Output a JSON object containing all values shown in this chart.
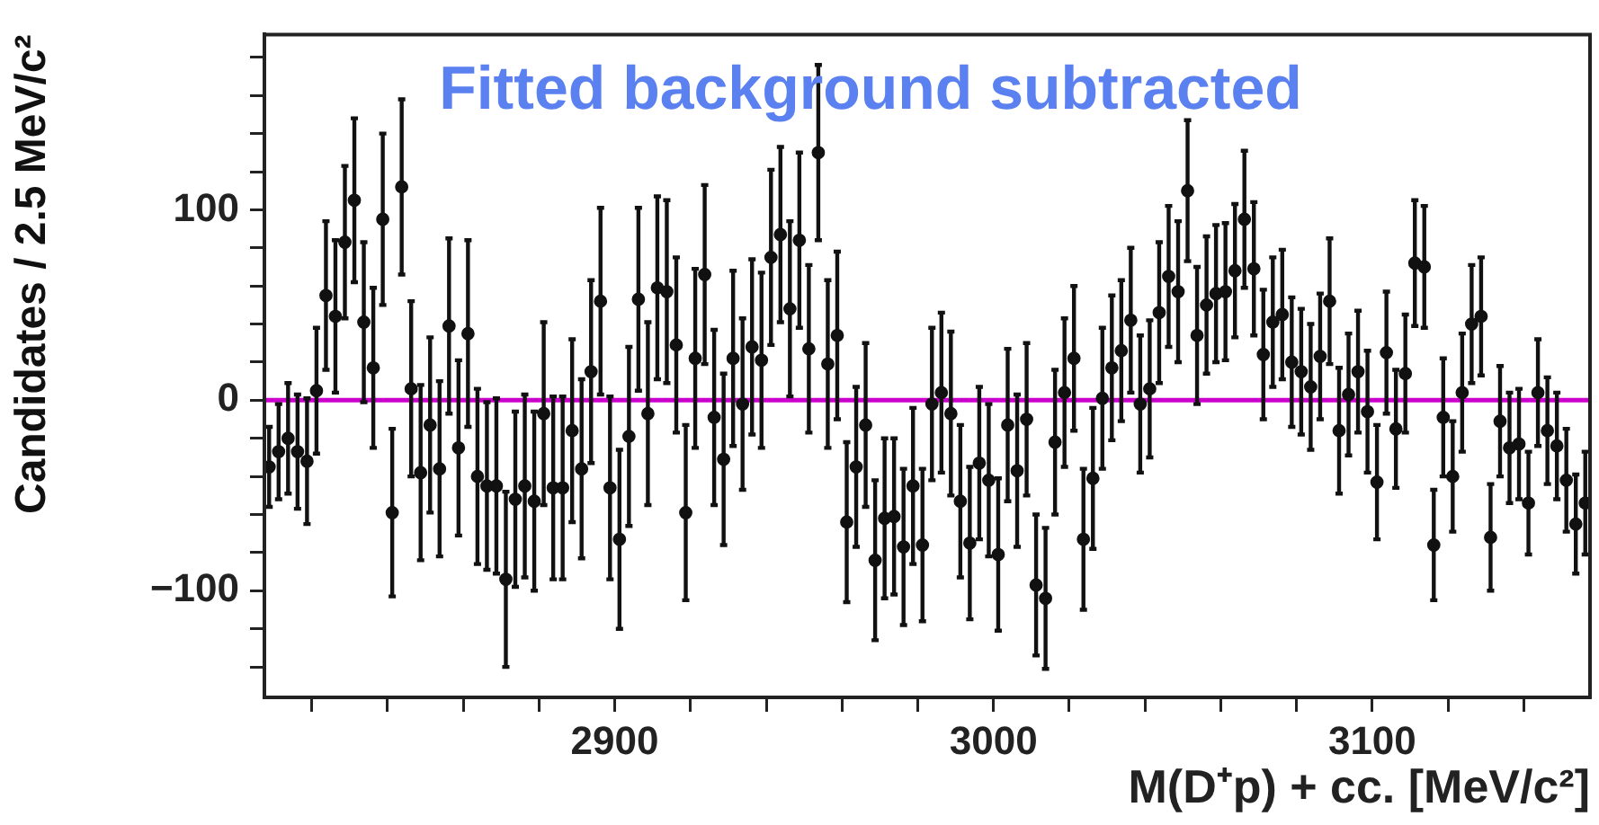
{
  "chart_data": {
    "type": "scatter",
    "title": "Fitted background subtracted",
    "xlabel": "M(D⁺p) + cc. [MeV/c²]",
    "ylabel": "Candidates / 2.5 MeV/c²",
    "xlim": [
      2807.5,
      3157.5
    ],
    "ylim": [
      -156,
      192
    ],
    "xticks": [
      {
        "value": 2820,
        "label": null
      },
      {
        "value": 2840,
        "label": null
      },
      {
        "value": 2860,
        "label": null
      },
      {
        "value": 2880,
        "label": null
      },
      2900,
      {
        "value": 2920,
        "label": null
      },
      {
        "value": 2940,
        "label": null
      },
      {
        "value": 2960,
        "label": null
      },
      {
        "value": 2980,
        "label": null
      },
      3000,
      {
        "value": 3020,
        "label": null
      },
      {
        "value": 3040,
        "label": null
      },
      {
        "value": 3060,
        "label": null
      },
      {
        "value": 3080,
        "label": null
      },
      3100,
      {
        "value": 3120,
        "label": null
      },
      {
        "value": 3140,
        "label": null
      }
    ],
    "yticks": [
      {
        "value": -140,
        "label": null
      },
      {
        "value": -120,
        "label": null
      },
      {
        "value": -100,
        "label": "−100"
      },
      {
        "value": -80,
        "label": null
      },
      {
        "value": -60,
        "label": null
      },
      {
        "value": -40,
        "label": null
      },
      {
        "value": -20,
        "label": null
      },
      0,
      {
        "value": 20,
        "label": null
      },
      {
        "value": 40,
        "label": null
      },
      {
        "value": 60,
        "label": null
      },
      {
        "value": 80,
        "label": null
      },
      100,
      {
        "value": 120,
        "label": null
      },
      {
        "value": 140,
        "label": null
      },
      {
        "value": 160,
        "label": null
      },
      {
        "value": 180,
        "label": null
      }
    ],
    "grid": false,
    "legend": false,
    "marker": "circle",
    "ref_lines": [
      {
        "axis": "y",
        "value": 0,
        "color": "#cc00cc"
      }
    ],
    "series": [
      {
        "color": "#111111",
        "x": [
          2808.75,
          2811.25,
          2813.75,
          2816.25,
          2818.75,
          2821.25,
          2823.75,
          2826.25,
          2828.75,
          2831.25,
          2833.75,
          2836.25,
          2838.75,
          2841.25,
          2843.75,
          2846.25,
          2848.75,
          2851.25,
          2853.75,
          2856.25,
          2858.75,
          2861.25,
          2863.75,
          2866.25,
          2868.75,
          2871.25,
          2873.75,
          2876.25,
          2878.75,
          2881.25,
          2883.75,
          2886.25,
          2888.75,
          2891.25,
          2893.75,
          2896.25,
          2898.75,
          2901.25,
          2903.75,
          2906.25,
          2908.75,
          2911.25,
          2913.75,
          2916.25,
          2918.75,
          2921.25,
          2923.75,
          2926.25,
          2928.75,
          2931.25,
          2933.75,
          2936.25,
          2938.75,
          2941.25,
          2943.75,
          2946.25,
          2948.75,
          2951.25,
          2953.75,
          2956.25,
          2958.75,
          2961.25,
          2963.75,
          2966.25,
          2968.75,
          2971.25,
          2973.75,
          2976.25,
          2978.75,
          2981.25,
          2983.75,
          2986.25,
          2988.75,
          2991.25,
          2993.75,
          2996.25,
          2998.75,
          3001.25,
          3003.75,
          3006.25,
          3008.75,
          3011.25,
          3013.75,
          3016.25,
          3018.75,
          3021.25,
          3023.75,
          3026.25,
          3028.75,
          3031.25,
          3033.75,
          3036.25,
          3038.75,
          3041.25,
          3043.75,
          3046.25,
          3048.75,
          3051.25,
          3053.75,
          3056.25,
          3058.75,
          3061.25,
          3063.75,
          3066.25,
          3068.75,
          3071.25,
          3073.75,
          3076.25,
          3078.75,
          3081.25,
          3083.75,
          3086.25,
          3088.75,
          3091.25,
          3093.75,
          3096.25,
          3098.75,
          3101.25,
          3103.75,
          3106.25,
          3108.75,
          3111.25,
          3113.75,
          3116.25,
          3118.75,
          3121.25,
          3123.75,
          3126.25,
          3128.75,
          3131.25,
          3133.75,
          3136.25,
          3138.75,
          3141.25,
          3143.75,
          3146.25,
          3148.75,
          3151.25,
          3153.75,
          3156.25
        ],
        "values": [
          -35,
          -27,
          -20,
          -27,
          -32,
          5,
          55,
          44,
          83,
          105,
          41,
          17,
          95,
          -59,
          112,
          6,
          -38,
          -13,
          -36,
          39,
          -25,
          35,
          -40,
          -45,
          -45,
          -94,
          -52,
          -45,
          -53,
          -7,
          -46,
          -46,
          -16,
          -36,
          15,
          52,
          -46,
          -73,
          -19,
          53,
          -7,
          59,
          57,
          29,
          -59,
          22,
          66,
          -9,
          -31,
          22,
          -2,
          28,
          21,
          75,
          87,
          48,
          84,
          27,
          130,
          19,
          34,
          -64,
          -35,
          -13,
          -84,
          -62,
          -61,
          -77,
          -45,
          -76,
          -2,
          4,
          -7,
          -53,
          -75,
          -33,
          -42,
          -81,
          -13,
          -37,
          -10,
          -97,
          -104,
          -22,
          4,
          22,
          -73,
          -41,
          1,
          17,
          26,
          42,
          -2,
          6,
          46,
          65,
          57,
          110,
          34,
          50,
          56,
          57,
          68,
          95,
          69,
          24,
          41,
          45,
          20,
          15,
          7,
          23,
          52,
          -16,
          3,
          15,
          -6,
          -43,
          25,
          -15,
          14,
          72,
          70,
          -76,
          -9,
          -40,
          4,
          40,
          44,
          -72,
          -11,
          -25,
          -23,
          -54,
          4,
          -16,
          -24,
          -42,
          -65,
          -54
        ],
        "errors": [
          21,
          25,
          29,
          30,
          33,
          33,
          39,
          40,
          40,
          43,
          42,
          42,
          45,
          44,
          46,
          46,
          46,
          46,
          46,
          46,
          46,
          49,
          46,
          44,
          46,
          46,
          46,
          48,
          47,
          48,
          48,
          48,
          48,
          47,
          48,
          49,
          48,
          47,
          47,
          48,
          48,
          48,
          48,
          46,
          46,
          47,
          47,
          46,
          45,
          46,
          45,
          46,
          46,
          46,
          46,
          46,
          46,
          44,
          46,
          44,
          44,
          42,
          42,
          43,
          42,
          42,
          41,
          41,
          41,
          40,
          40,
          42,
          43,
          40,
          40,
          40,
          40,
          40,
          40,
          40,
          40,
          37,
          37,
          38,
          39,
          38,
          37,
          37,
          37,
          38,
          37,
          38,
          36,
          36,
          37,
          37,
          37,
          37,
          36,
          36,
          36,
          36,
          35,
          36,
          35,
          34,
          34,
          34,
          34,
          33,
          33,
          33,
          33,
          33,
          32,
          32,
          32,
          30,
          32,
          31,
          31,
          33,
          32,
          29,
          31,
          29,
          31,
          31,
          31,
          28,
          29,
          29,
          29,
          27,
          28,
          28,
          28,
          27,
          26,
          27
        ]
      }
    ]
  }
}
